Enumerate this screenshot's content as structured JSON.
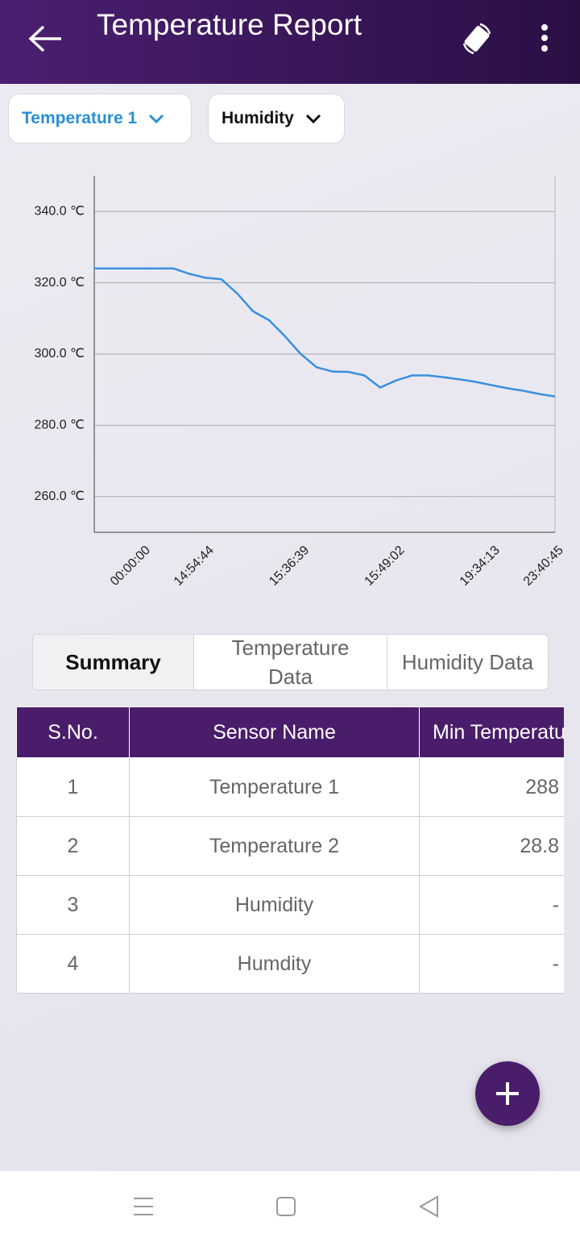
{
  "header": {
    "title": "Temperature Report"
  },
  "filters": [
    "Temperature 1",
    "Humidity"
  ],
  "chart_data": {
    "type": "line",
    "categories": [
      null,
      null,
      null,
      "00:00:00",
      null,
      null,
      null,
      "14:54:44",
      null,
      null,
      null,
      null,
      null,
      "15:36:39",
      null,
      null,
      null,
      null,
      null,
      "15:49:02",
      null,
      null,
      null,
      null,
      null,
      "19:34:13",
      null,
      null,
      null,
      "23:40:45"
    ],
    "values": [
      324,
      324,
      324,
      324,
      324,
      324,
      322.5,
      321.4,
      321,
      317,
      312,
      309.5,
      305,
      300,
      296.3,
      295.1,
      295,
      294,
      290.6,
      292.6,
      294,
      294,
      293.5,
      292.9,
      292.2,
      291.3,
      290.4,
      289.7,
      288.8,
      288.1
    ],
    "color": "#3a8fe0",
    "ylim": [
      250,
      350
    ],
    "yticks": [
      {
        "value": 260,
        "label": "260.0 ℃"
      },
      {
        "value": 280,
        "label": "280.0 ℃"
      },
      {
        "value": 300,
        "label": "300.0 ℃"
      },
      {
        "value": 320,
        "label": "320.0 ℃"
      },
      {
        "value": 340,
        "label": "340.0 ℃"
      }
    ],
    "grid": true
  },
  "tabs": [
    "Summary",
    "Temperature Data",
    "Humidity Data"
  ],
  "table": {
    "columns": [
      "S.No.",
      "Sensor Name",
      "Min Temperature"
    ],
    "rows": [
      [
        "1",
        "Temperature 1",
        "288"
      ],
      [
        "2",
        "Temperature 2",
        "28.8"
      ],
      [
        "3",
        "Humidity",
        "-"
      ],
      [
        "4",
        "Humdity",
        "-"
      ]
    ]
  }
}
